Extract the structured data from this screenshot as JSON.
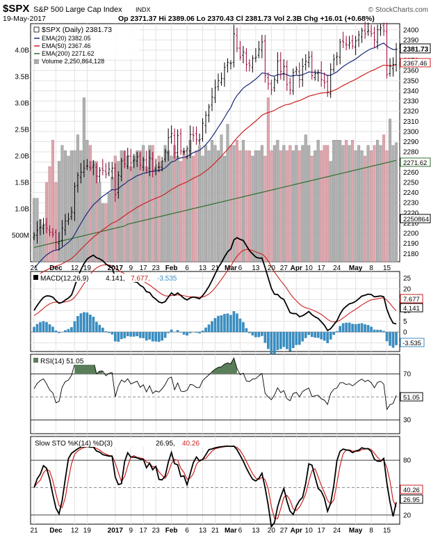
{
  "header": {
    "symbol": "$SPX",
    "name": "S&P 500 Large Cap Index",
    "exchange": "INDX",
    "date": "19-May-2017",
    "ohlc": "Op 2371.37  Hi 2389.06  Lo 2370.43  Cl 2381.73  Vol 2.3B  Chg +16.01 (+0.68%)",
    "credit": "© StockCharts.com"
  },
  "legend": {
    "price": "$SPX (Daily) 2381.73",
    "ema20": "EMA(20) 2382.05",
    "ema50": "EMA(50) 2367.46",
    "ema200": "EMA(200) 2271.62",
    "volume": "Volume 2,250,864,128"
  },
  "last_values": {
    "close": "2381.73",
    "ema50": "2367.46",
    "ema200": "2271.62",
    "volume": "2250864"
  },
  "colors": {
    "up": "#000000",
    "down": "#990033",
    "ema20": "#1a2a7a",
    "ema50": "#cc2222",
    "ema200": "#2e6e2e",
    "vol_up": "#b0b0b0",
    "vol_down": "#dda7ae",
    "macd_hist": "#3a8dc0",
    "rsi_fill": "#5a7e5a",
    "grid": "#e2e2e2"
  },
  "x_axis": {
    "ticks": [
      {
        "i": 0,
        "label": "21",
        "bold": false
      },
      {
        "i": 7,
        "label": "Dec",
        "bold": true
      },
      {
        "i": 13,
        "label": "12",
        "bold": false
      },
      {
        "i": 17,
        "label": "19",
        "bold": false
      },
      {
        "i": 26,
        "label": "2017",
        "bold": true
      },
      {
        "i": 31,
        "label": "9",
        "bold": false
      },
      {
        "i": 35,
        "label": "17",
        "bold": false
      },
      {
        "i": 39,
        "label": "23",
        "bold": false
      },
      {
        "i": 44,
        "label": "Feb",
        "bold": true
      },
      {
        "i": 49,
        "label": "6",
        "bold": false
      },
      {
        "i": 54,
        "label": "13",
        "bold": false
      },
      {
        "i": 58,
        "label": "21",
        "bold": false
      },
      {
        "i": 63,
        "label": "Mar",
        "bold": true
      },
      {
        "i": 66,
        "label": "6",
        "bold": false
      },
      {
        "i": 71,
        "label": "13",
        "bold": false
      },
      {
        "i": 76,
        "label": "20",
        "bold": false
      },
      {
        "i": 80,
        "label": "27",
        "bold": false
      },
      {
        "i": 84,
        "label": "Apr",
        "bold": true
      },
      {
        "i": 88,
        "label": "10",
        "bold": false
      },
      {
        "i": 92,
        "label": "17",
        "bold": false
      },
      {
        "i": 97,
        "label": "24",
        "bold": false
      },
      {
        "i": 103,
        "label": "May",
        "bold": true
      },
      {
        "i": 108,
        "label": "8",
        "bold": false
      },
      {
        "i": 113,
        "label": "15",
        "bold": false
      }
    ]
  },
  "price_axis": {
    "ylim": [
      2172,
      2406
    ],
    "ticks": [
      2180,
      2190,
      2200,
      2210,
      2220,
      2230,
      2240,
      2250,
      2260,
      2270,
      2280,
      2290,
      2300,
      2310,
      2320,
      2330,
      2340,
      2350,
      2360,
      2370,
      2380,
      2390,
      2400
    ]
  },
  "volume_axis": {
    "ylim": [
      0,
      4.5
    ],
    "ticks": [
      {
        "v": 0.5,
        "label": "500M"
      },
      {
        "v": 1.0,
        "label": "1.0B"
      },
      {
        "v": 1.5,
        "label": "1.5B"
      },
      {
        "v": 2.0,
        "label": "2.0B"
      },
      {
        "v": 2.5,
        "label": "2.5B"
      },
      {
        "v": 3.0,
        "label": "3.0B"
      },
      {
        "v": 3.5,
        "label": "3.5B"
      },
      {
        "v": 4.0,
        "label": "4.0B"
      }
    ]
  },
  "macd_panel": {
    "legend_name": "MACD(12,26,9)",
    "legend_macd": "4.141,",
    "legend_signal": "7.677,",
    "legend_hist": "-3.535",
    "ylim": [
      -9,
      28
    ],
    "ticks": [
      -5,
      0,
      5,
      10,
      15,
      20,
      25
    ],
    "last_macd": "4.141",
    "last_signal": "7.677",
    "last_hist": "-3.535"
  },
  "rsi_panel": {
    "legend": "RSI(14) 51.05",
    "ylim": [
      18,
      87
    ],
    "ticks": [
      30,
      50,
      70
    ],
    "last": "51.05"
  },
  "sto_panel": {
    "legend_name": "Slow STO %K(14) %D(3)",
    "legend_k": "26.95,",
    "legend_d": "40.26",
    "ylim": [
      10,
      106
    ],
    "ticks": [
      20,
      50,
      80
    ],
    "last_k": "26.95",
    "last_d": "40.26"
  },
  "chart_data": [
    {
      "type": "candlestick",
      "title": "$SPX S&P 500 Large Cap Index INDX",
      "ylim": [
        2172,
        2406
      ],
      "x_labels_note": "daily sessions 21-Nov-2016 to 19-May-2017",
      "close": [
        2198,
        2203,
        2206,
        2208,
        2205,
        2201,
        2199,
        2191,
        2192,
        2205,
        2212,
        2214,
        2221,
        2246,
        2257,
        2260,
        2264,
        2266,
        2264,
        2267,
        2256,
        2262,
        2262,
        2258,
        2263,
        2264,
        2238,
        2257,
        2271,
        2268,
        2276,
        2269,
        2272,
        2275,
        2267,
        2272,
        2262,
        2274,
        2262,
        2267,
        2265,
        2271,
        2280,
        2294,
        2298,
        2279,
        2296,
        2281,
        2280,
        2283,
        2297,
        2296,
        2292,
        2292,
        2308,
        2316,
        2324,
        2334,
        2343,
        2350,
        2352,
        2363,
        2368,
        2367,
        2396,
        2382,
        2373,
        2378,
        2366,
        2365,
        2372,
        2373,
        2381,
        2388,
        2355,
        2347,
        2341,
        2351,
        2369,
        2359,
        2364,
        2346,
        2341,
        2358,
        2361,
        2351,
        2364,
        2369,
        2373,
        2355,
        2357,
        2358,
        2351,
        2348,
        2339,
        2361,
        2371,
        2374,
        2388,
        2388,
        2385,
        2387,
        2384,
        2389,
        2395,
        2399,
        2396,
        2399,
        2396,
        2390,
        2400,
        2402,
        2399,
        2356,
        2364,
        2366,
        2381
      ],
      "ema20_note": "EMA(20) last 2382.05",
      "ema50_note": "EMA(50) last 2367.46",
      "ema200_note": "EMA(200) last 2271.62"
    },
    {
      "type": "bar",
      "title": "Volume",
      "ylabel": "Volume",
      "ylim": [
        0,
        4.5
      ],
      "values": [
        1.2,
        1.2,
        0.8,
        0.7,
        1.5,
        1.8,
        2.3,
        1.5,
        1.9,
        2.2,
        2.1,
        2.0,
        2.1,
        2.1,
        2.4,
        2.1,
        3.1,
        2.3,
        2.2,
        1.9,
        1.9,
        1.5,
        1.1,
        1.1,
        1.3,
        1.6,
        2.0,
        1.9,
        2.1,
        2.1,
        2.0,
        1.8,
        2.0,
        2.1,
        2.1,
        2.2,
        1.8,
        2.2,
        2.2,
        1.8,
        2.0,
        1.9,
        2.2,
        2.1,
        2.0,
        2.2,
        2.0,
        1.9,
        2.1,
        2.0,
        2.3,
        2.0,
        2.1,
        2.2,
        2.0,
        2.2,
        2.1,
        2.3,
        2.2,
        2.1,
        2.4,
        2.0,
        2.6,
        2.2,
        2.2,
        2.3,
        2.1,
        2.3,
        2.1,
        2.1,
        2.0,
        2.1,
        2.1,
        2.2,
        2.0,
        3.1,
        2.1,
        2.2,
        2.3,
        2.1,
        2.2,
        2.1,
        2.2,
        2.1,
        2.2,
        2.1,
        2.2,
        2.4,
        2.2,
        2.0,
        2.1,
        2.3,
        2.1,
        2.2,
        2.2,
        1.9,
        2.3,
        2.3,
        2.3,
        2.2,
        2.3,
        2.2,
        2.3,
        2.1,
        2.2,
        2.1,
        2.0,
        2.2,
        2.1,
        2.2,
        2.3,
        2.2,
        2.4,
        2.1,
        2.7,
        2.2,
        2.25
      ]
    },
    {
      "type": "line",
      "title": "MACD(12,26,9)",
      "ylim": [
        -9,
        28
      ],
      "series_note": "MACD line, signal line and histogram",
      "last": {
        "macd": 4.141,
        "signal": 7.677,
        "histogram": -3.535
      }
    },
    {
      "type": "line",
      "title": "RSI(14)",
      "ylim": [
        18,
        87
      ],
      "last": 51.05
    },
    {
      "type": "line",
      "title": "Slow STO %K(14) %D(3)",
      "ylim": [
        10,
        106
      ],
      "last": {
        "k": 26.95,
        "d": 40.26
      }
    }
  ]
}
